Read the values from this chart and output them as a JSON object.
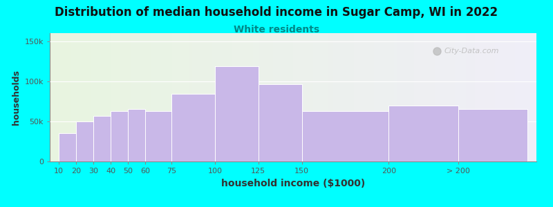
{
  "title": "Distribution of median household income in Sugar Camp, WI in 2022",
  "subtitle": "White residents",
  "xlabel": "household income ($1000)",
  "ylabel": "households",
  "background_color": "#00FFFF",
  "plot_bg_gradient_left": "#e8f5e0",
  "plot_bg_gradient_right": "#f0eef8",
  "bar_color": "#c9b8e8",
  "bar_edge_color": "#ffffff",
  "categories": [
    "10",
    "20",
    "30",
    "40",
    "50",
    "60",
    "75",
    "100",
    "125",
    "150",
    "200",
    "> 200"
  ],
  "values": [
    35000,
    50000,
    57000,
    63000,
    65000,
    63000,
    84000,
    119000,
    96000,
    63000,
    70000,
    65000
  ],
  "bar_lefts": [
    10,
    20,
    30,
    40,
    50,
    60,
    75,
    100,
    125,
    150,
    200,
    240
  ],
  "bar_widths": [
    10,
    10,
    10,
    10,
    10,
    15,
    25,
    25,
    25,
    50,
    40,
    40
  ],
  "xtick_positions": [
    10,
    20,
    30,
    40,
    50,
    60,
    75,
    100,
    125,
    150,
    200,
    240
  ],
  "yticks": [
    0,
    50000,
    100000,
    150000
  ],
  "ytick_labels": [
    "0",
    "50k",
    "100k",
    "150k"
  ],
  "ylim": [
    0,
    160000
  ],
  "xlim": [
    5,
    285
  ],
  "title_fontsize": 12,
  "subtitle_fontsize": 10,
  "subtitle_color": "#008888",
  "title_color": "#111111",
  "watermark_text": "City-Data.com",
  "axis_label_color": "#333333",
  "tick_color": "#555555",
  "grid_color": "#ffffff",
  "spine_color": "#888888"
}
